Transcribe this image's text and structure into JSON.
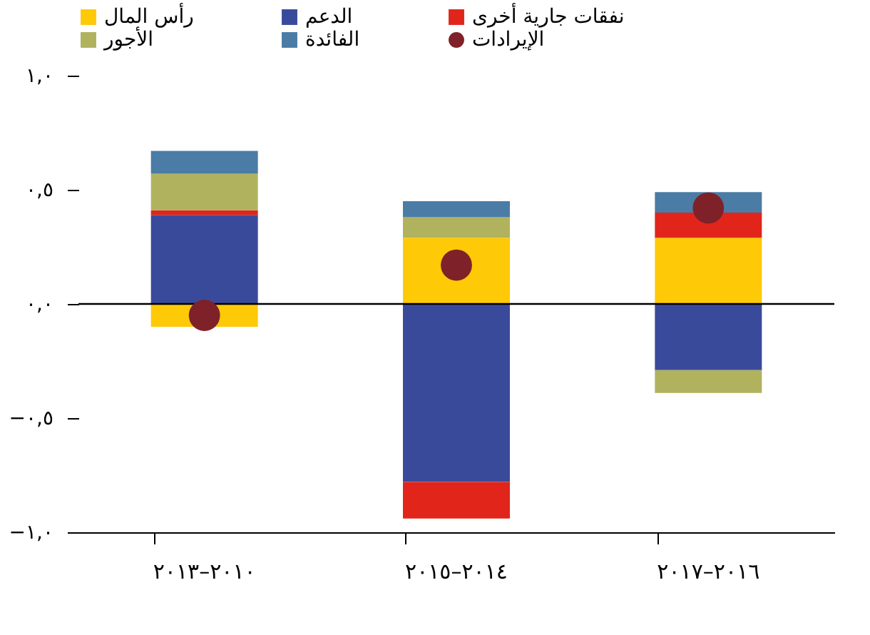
{
  "chart_data": {
    "type": "bar",
    "stacked": true,
    "categories": [
      "٢٠١٠–٢٠١٣",
      "٢٠١٤–٢٠١٥",
      "٢٠١٦–٢٠١٧"
    ],
    "series": [
      {
        "name": "رأس المال",
        "color": "#fec907",
        "values": [
          -0.1,
          0.29,
          0.29
        ]
      },
      {
        "name": "الدعم",
        "color": "#3a4a9b",
        "values": [
          0.39,
          -0.78,
          -0.29
        ]
      },
      {
        "name": "نفقات جارية أخرى",
        "color": "#e1251b",
        "values": [
          0.02,
          -0.16,
          0.11
        ]
      },
      {
        "name": "الأجور",
        "color": "#b0b25e",
        "values": [
          0.16,
          0.09,
          -0.1
        ]
      },
      {
        "name": "الفائدة",
        "color": "#4a7ca6",
        "values": [
          0.1,
          0.07,
          0.09
        ]
      },
      {
        "name": "الإيرادات",
        "type": "scatter",
        "marker": "circle",
        "color": "#7f2128",
        "values": [
          -0.05,
          0.17,
          0.42
        ]
      }
    ],
    "ylim": [
      -1.0,
      1.0
    ],
    "yticks": [
      {
        "value": -1.0,
        "label": "−١,٠"
      },
      {
        "value": -0.5,
        "label": "−٠,٥"
      },
      {
        "value": 0,
        "label": "٠,٠"
      },
      {
        "value": 0.5,
        "label": "٠,٥"
      },
      {
        "value": 1.0,
        "label": "١,٠"
      }
    ],
    "ref_lines": [
      {
        "axis": "y",
        "value": 0,
        "color": "#000000"
      }
    ],
    "grid": false,
    "legend": "top"
  }
}
